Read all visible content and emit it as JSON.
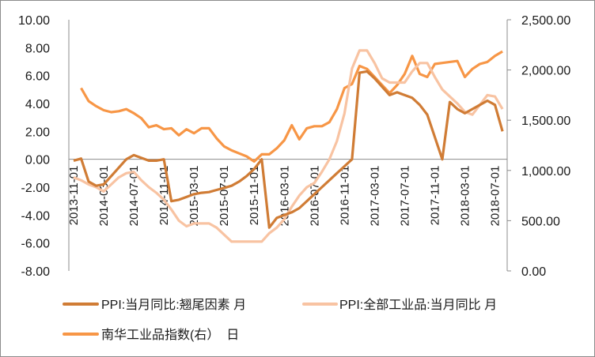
{
  "chart_data": {
    "type": "line",
    "title": "",
    "x_start": "2013-11",
    "x_tick_labels": [
      "2013-11-01",
      "2014-03-01",
      "2014-07-01",
      "2014-11-01",
      "2015-03-01",
      "2015-07-01",
      "2015-11-01",
      "2016-03-01",
      "2016-07-01",
      "2016-11-01",
      "2017-03-01",
      "2017-07-01",
      "2017-11-01",
      "2018-03-01",
      "2018-07-01"
    ],
    "left_axis": {
      "ylim": [
        -8,
        10
      ],
      "ticks": [
        "10.00",
        "8.00",
        "6.00",
        "4.00",
        "2.00",
        "0.00",
        "-2.00",
        "-4.00",
        "-6.00",
        "-8.00"
      ]
    },
    "right_axis": {
      "ylim": [
        0,
        2500
      ],
      "ticks": [
        "2,500.00",
        "2,000.00",
        "1,500.00",
        "1,000.00",
        "500.00",
        "0.00"
      ]
    },
    "legend_position": "bottom",
    "series": [
      {
        "name": "PPI:当月同比:翘尾因素 月",
        "axis": "left",
        "color": "#D07C35",
        "values": [
          -0.1,
          0.05,
          -1.6,
          -1.9,
          -1.8,
          -1.2,
          -0.6,
          0.0,
          0.3,
          0.1,
          -0.1,
          -0.1,
          0.0,
          -3.0,
          -2.9,
          -2.7,
          -2.5,
          -2.4,
          -2.35,
          -2.2,
          -2.05,
          -1.9,
          -1.6,
          -1.2,
          -0.7,
          0.0,
          -4.9,
          -4.2,
          -4.0,
          -3.8,
          -3.5,
          -3.0,
          -2.5,
          -2.0,
          -1.5,
          -1.0,
          -0.5,
          0.0,
          6.2,
          6.3,
          5.8,
          5.2,
          4.6,
          4.8,
          4.6,
          4.4,
          3.9,
          3.2,
          1.6,
          0.0,
          4.1,
          3.6,
          3.3,
          3.6,
          3.9,
          4.2,
          3.9,
          2.0
        ]
      },
      {
        "name": "PPI:全部工业品:当月同比 月",
        "axis": "left",
        "color": "#F8C3A2",
        "values": [
          -1.3,
          -1.5,
          -1.8,
          -2.0,
          -2.3,
          -1.8,
          -1.3,
          -1.0,
          -0.9,
          -1.5,
          -2.0,
          -2.4,
          -2.9,
          -3.6,
          -4.4,
          -4.8,
          -4.6,
          -4.6,
          -4.6,
          -4.9,
          -5.4,
          -5.9,
          -5.9,
          -5.9,
          -5.9,
          -5.9,
          -5.3,
          -4.9,
          -4.3,
          -3.4,
          -2.6,
          -2.0,
          -1.7,
          -0.9,
          0.0,
          1.3,
          3.3,
          6.5,
          7.8,
          7.8,
          6.9,
          5.8,
          5.5,
          5.5,
          5.5,
          6.3,
          6.9,
          6.9,
          5.9,
          5.0,
          4.5,
          4.0,
          3.4,
          3.2,
          3.9,
          4.6,
          4.5,
          3.6
        ]
      },
      {
        "name": "南华工业品指数(右）  日",
        "axis": "right",
        "color": "#F79646",
        "values": [
          null,
          1820,
          1690,
          1640,
          1600,
          1580,
          1590,
          1610,
          1570,
          1520,
          1430,
          1450,
          1410,
          1420,
          1350,
          1410,
          1370,
          1420,
          1420,
          1320,
          1240,
          1200,
          1170,
          1140,
          1090,
          1160,
          1160,
          1220,
          1300,
          1450,
          1310,
          1420,
          1440,
          1440,
          1480,
          1610,
          1820,
          1860,
          2040,
          2010,
          1930,
          1850,
          1770,
          1850,
          1960,
          2140,
          1960,
          1930,
          2060,
          2070,
          2080,
          2090,
          1930,
          2010,
          2060,
          2080,
          2140,
          2185
        ]
      }
    ]
  }
}
